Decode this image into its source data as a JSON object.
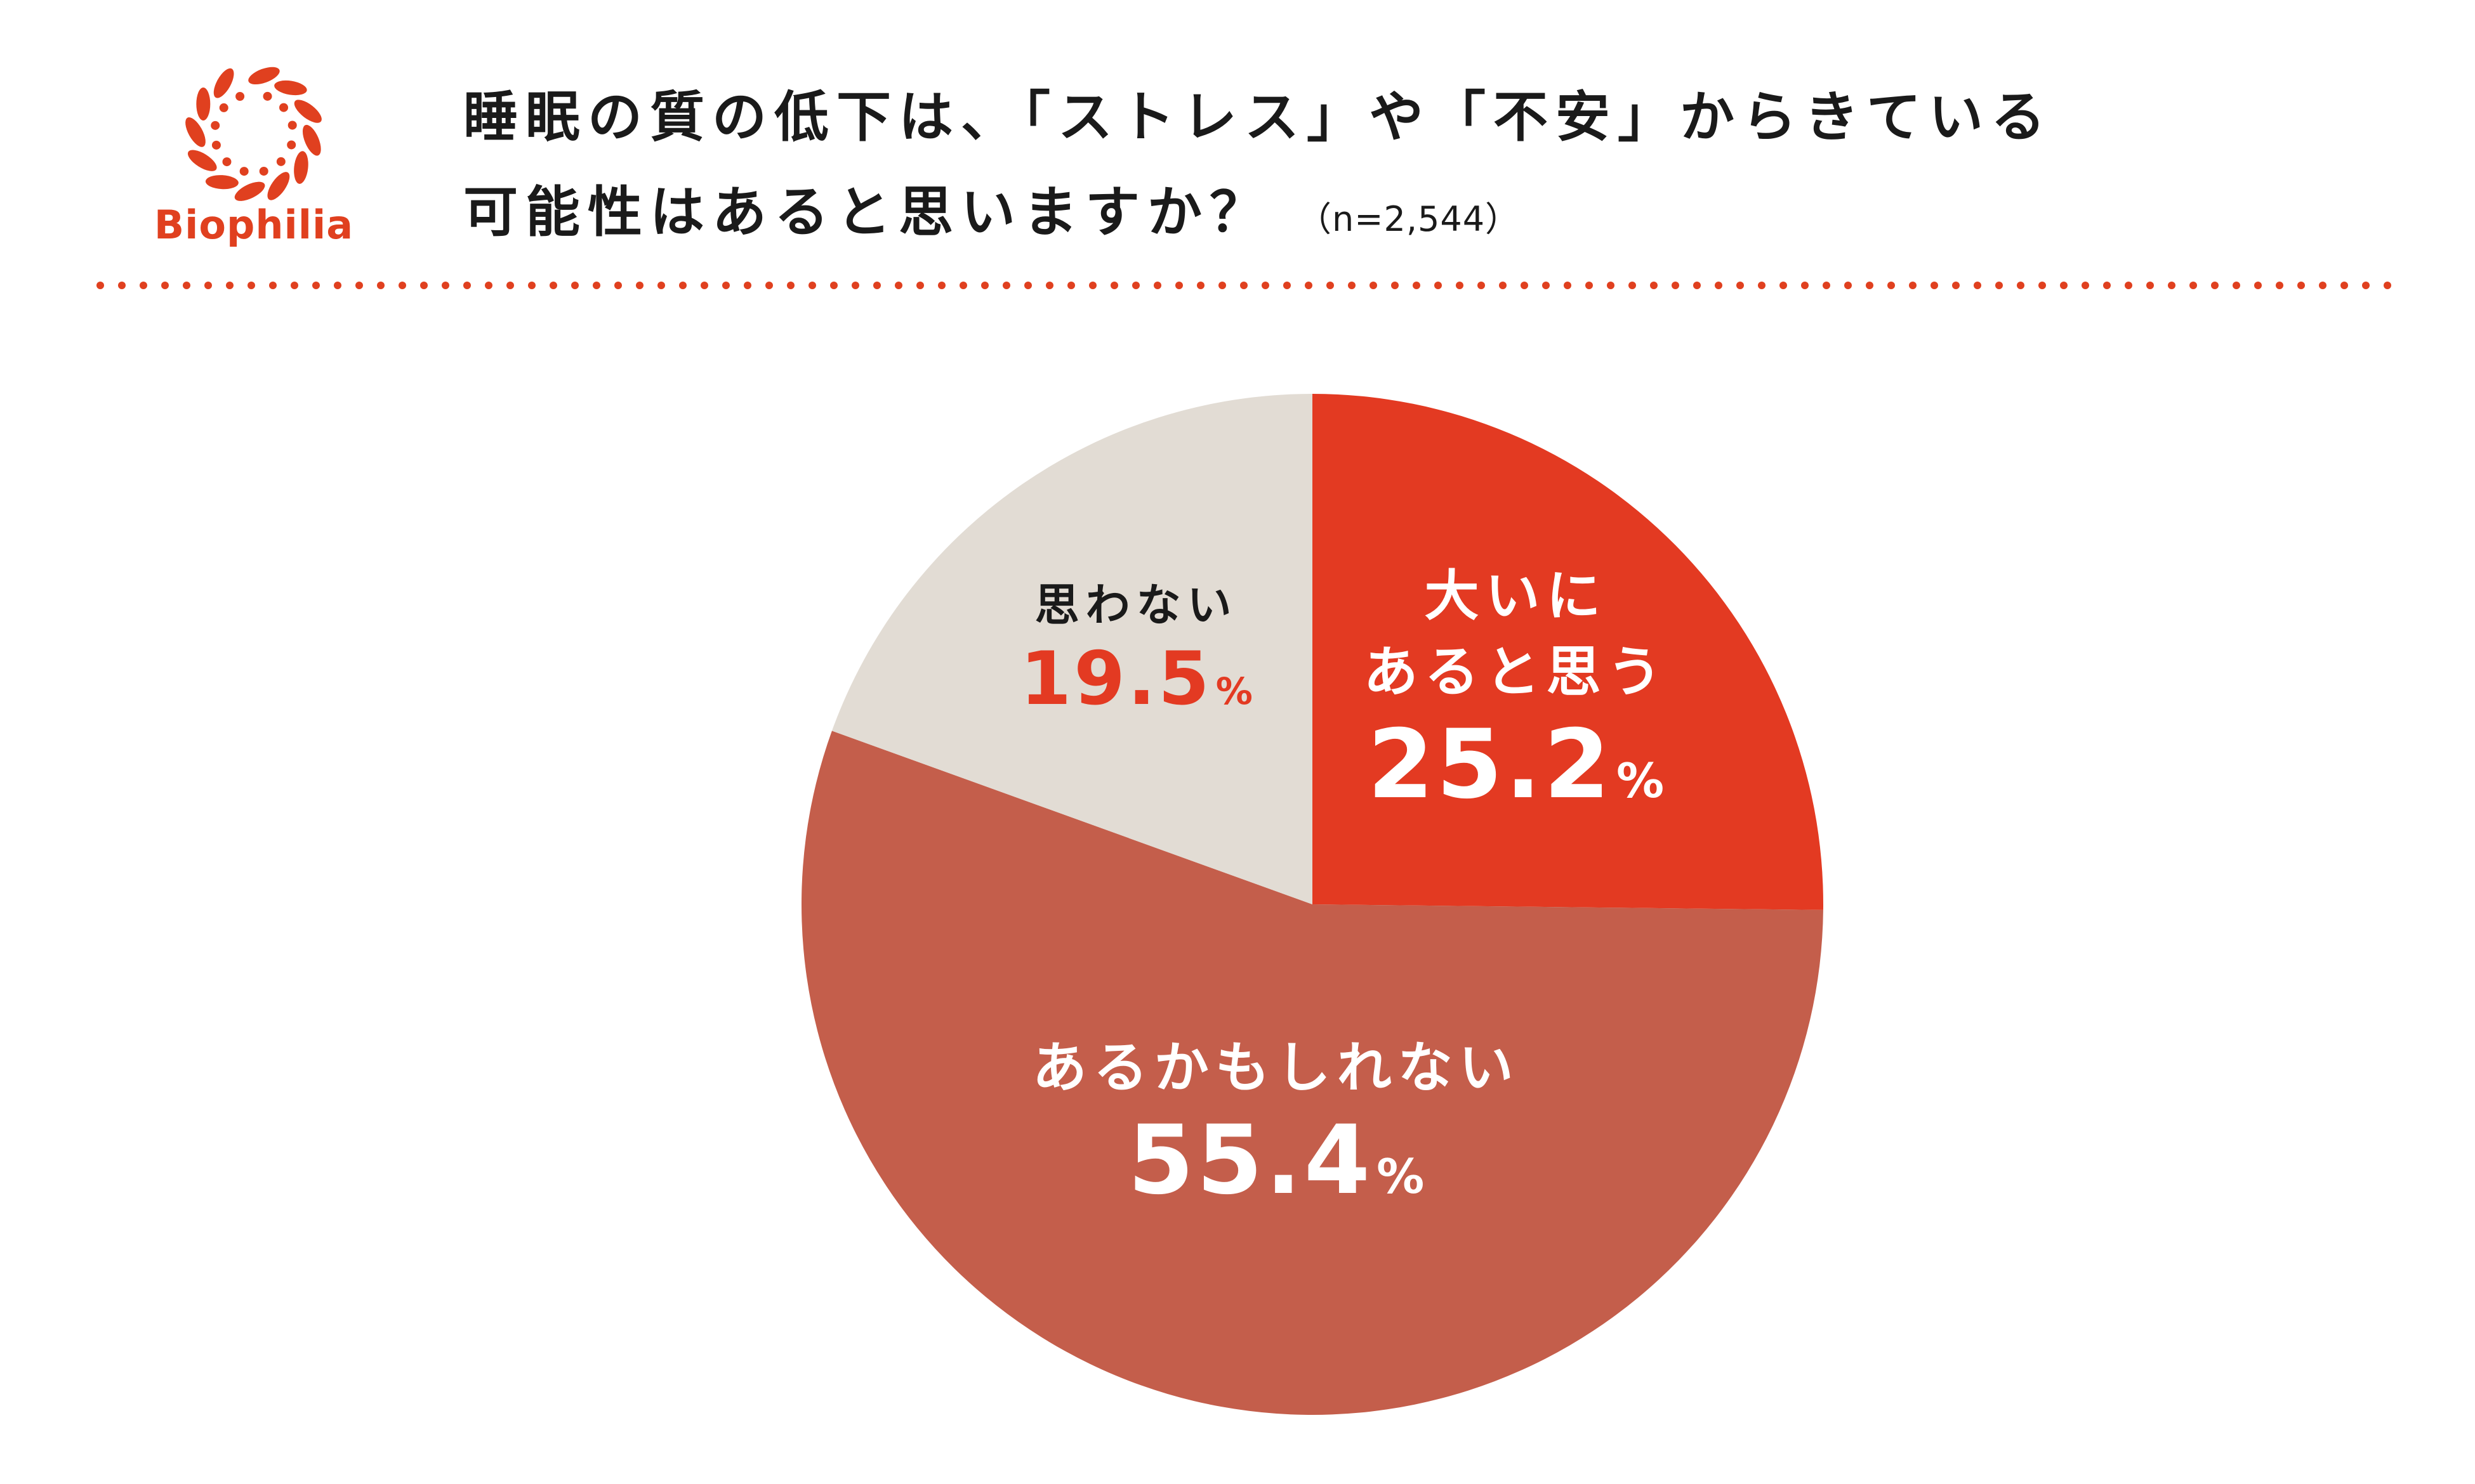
{
  "brand": {
    "name": "Biophilia",
    "color": "#e0401f"
  },
  "header": {
    "title_line1": "睡眠の質の低下は、「ストレス」や「不安」からきている",
    "title_line2": "可能性はあると思いますか？",
    "sample_size": "（n=2,544）"
  },
  "chart_data": {
    "type": "pie",
    "title": "睡眠の質の低下は、「ストレス」や「不安」からきている可能性はあると思いますか？",
    "sample": "n=2,544",
    "slices": [
      {
        "label_lines": [
          "大いに",
          "あると思う"
        ],
        "value": 25.2,
        "display": "25.2",
        "unit": "%",
        "color": "#e33a22",
        "label_color": "#ffffff",
        "value_color": "#ffffff"
      },
      {
        "label_lines": [
          "あるかもしれない"
        ],
        "value": 55.4,
        "display": "55.4",
        "unit": "%",
        "color": "#c45e4b",
        "label_color": "#ffffff",
        "value_color": "#ffffff"
      },
      {
        "label_lines": [
          "思わない"
        ],
        "value": 19.5,
        "display": "19.5",
        "unit": "%",
        "color": "#e2dcd4",
        "label_color": "#1a1a1a",
        "value_color": "#e33a22"
      }
    ],
    "start_angle": "12 o'clock",
    "direction": "clockwise"
  }
}
